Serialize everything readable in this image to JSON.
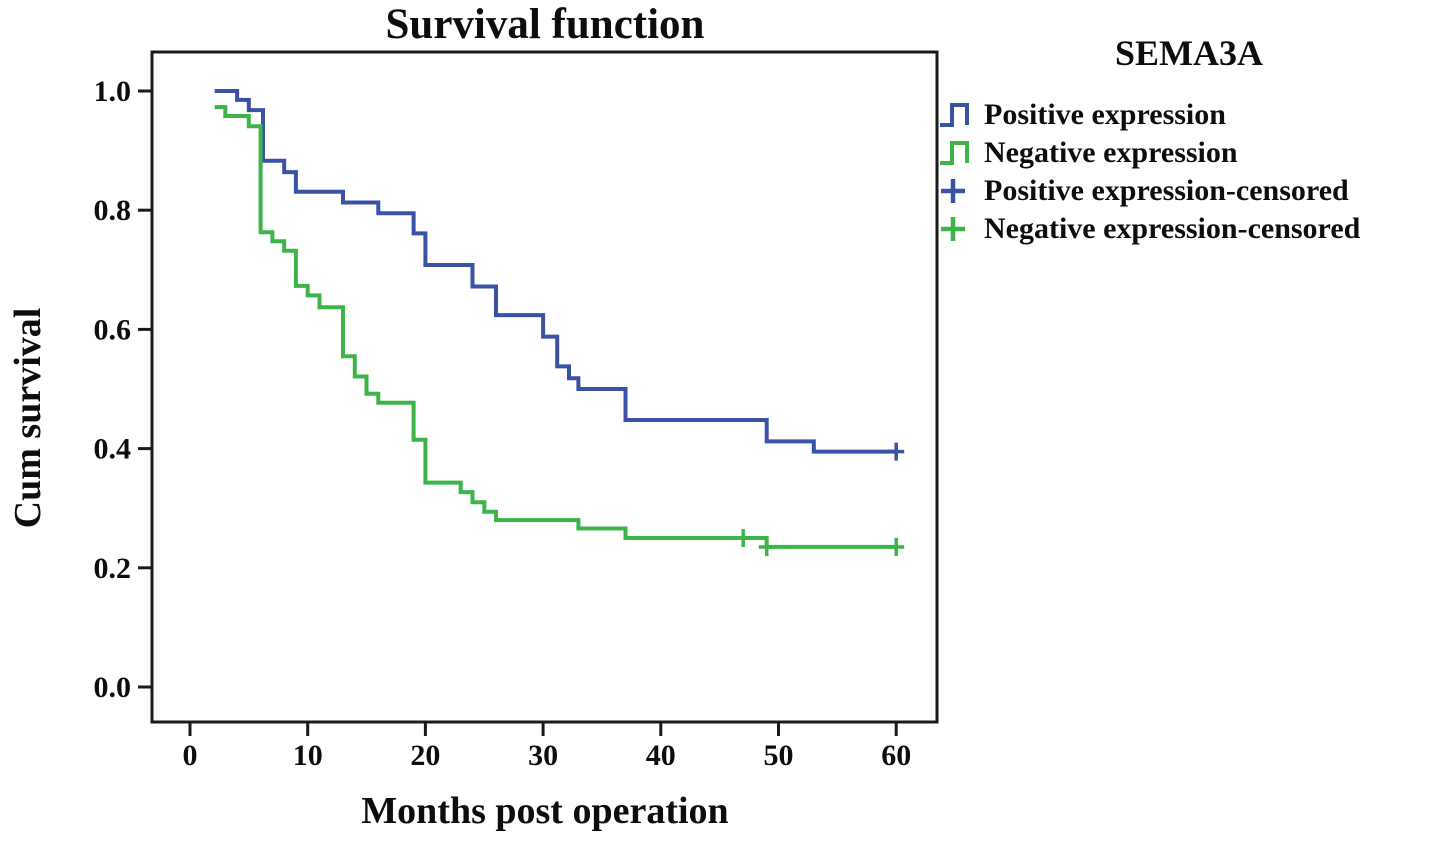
{
  "chart_data": {
    "type": "line",
    "subtype": "kaplan_meier_step",
    "title": "Survival function",
    "xlabel": "Months post operation",
    "ylabel": "Cum survival",
    "xlim": [
      0,
      60
    ],
    "ylim": [
      0.0,
      1.0
    ],
    "xticks": [
      0,
      10,
      20,
      30,
      40,
      50,
      60
    ],
    "yticks": [
      "0.0",
      "0.2",
      "0.4",
      "0.6",
      "0.8",
      "1.0"
    ],
    "grid": false,
    "axis_color": "#1a1a1a",
    "legend": {
      "title": "SEMA3A",
      "position": "top-right",
      "entries": [
        {
          "label": "Positive expression",
          "marker": "step-line",
          "color": "#3A52A5"
        },
        {
          "label": "Negative expression",
          "marker": "step-line",
          "color": "#3CB44A"
        },
        {
          "label": "Positive expression-censored",
          "marker": "plus",
          "color": "#3A52A5"
        },
        {
          "label": "Negative expression-censored",
          "marker": "plus",
          "color": "#3CB44A"
        }
      ]
    },
    "series": [
      {
        "id": "positive-expression",
        "name": "Positive expression",
        "color": "#3A52A5",
        "step_points": [
          [
            2.1,
            1.0
          ],
          [
            4,
            0.985
          ],
          [
            5,
            0.968
          ],
          [
            6.2,
            0.883
          ],
          [
            8,
            0.864
          ],
          [
            9,
            0.831
          ],
          [
            13,
            0.813
          ],
          [
            16,
            0.795
          ],
          [
            19,
            0.761
          ],
          [
            20,
            0.708
          ],
          [
            24,
            0.672
          ],
          [
            26,
            0.624
          ],
          [
            30,
            0.588
          ],
          [
            31.2,
            0.538
          ],
          [
            32.2,
            0.518
          ],
          [
            33,
            0.5
          ],
          [
            37,
            0.448
          ],
          [
            49,
            0.412
          ],
          [
            53,
            0.395
          ]
        ],
        "end_x": 60,
        "censored": [
          [
            60,
            0.395
          ]
        ]
      },
      {
        "id": "negative-expression",
        "name": "Negative expression",
        "color": "#3CB44A",
        "step_points": [
          [
            2.1,
            0.973
          ],
          [
            3,
            0.958
          ],
          [
            5,
            0.941
          ],
          [
            6,
            0.763
          ],
          [
            7,
            0.748
          ],
          [
            8,
            0.732
          ],
          [
            9,
            0.673
          ],
          [
            10,
            0.657
          ],
          [
            11,
            0.637
          ],
          [
            13,
            0.555
          ],
          [
            14,
            0.521
          ],
          [
            15,
            0.492
          ],
          [
            16,
            0.477
          ],
          [
            19,
            0.415
          ],
          [
            20,
            0.343
          ],
          [
            23,
            0.327
          ],
          [
            24,
            0.31
          ],
          [
            25,
            0.294
          ],
          [
            26,
            0.28
          ],
          [
            33,
            0.266
          ],
          [
            37,
            0.25
          ],
          [
            49,
            0.235
          ]
        ],
        "end_x": 60,
        "censored": [
          [
            47,
            0.25
          ],
          [
            49,
            0.235
          ],
          [
            60,
            0.235
          ]
        ]
      }
    ]
  }
}
